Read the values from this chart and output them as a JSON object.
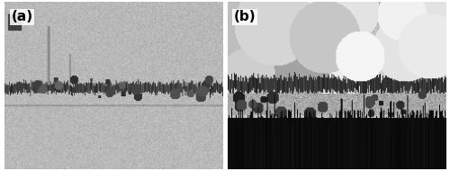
{
  "figsize": [
    5.0,
    1.9
  ],
  "dpi": 100,
  "bg_color": "#ffffff",
  "label_a": "(a)",
  "label_b": "(b)",
  "label_fontsize": 11,
  "label_color": "#000000"
}
